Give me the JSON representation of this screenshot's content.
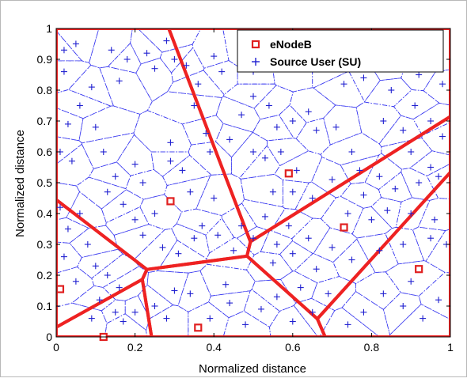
{
  "chart_data": {
    "type": "scatter",
    "title": "",
    "xlabel": "Normalized distance",
    "ylabel": "Normalized distance",
    "xlim": [
      0,
      1
    ],
    "ylim": [
      0,
      1
    ],
    "x_ticks": [
      "0",
      "0.2",
      "0.4",
      "0.6",
      "0.8",
      "1"
    ],
    "y_ticks": [
      "0",
      "0.1",
      "0.2",
      "0.3",
      "0.4",
      "0.5",
      "0.6",
      "0.7",
      "0.8",
      "0.9",
      "1"
    ],
    "grid": false,
    "legend_position": "top-right",
    "colors": {
      "enodeb": "#e02020",
      "su": "#1f1fd0",
      "cell_edge": "#ee2222",
      "user_edge": "#3a3af0"
    },
    "series": [
      {
        "name": "eNodeB",
        "marker": "square",
        "points": [
          [
            0.01,
            0.155
          ],
          [
            0.12,
            0.0
          ],
          [
            0.29,
            0.44
          ],
          [
            0.36,
            0.03
          ],
          [
            0.59,
            0.53
          ],
          [
            0.73,
            0.355
          ],
          [
            0.92,
            0.22
          ]
        ]
      },
      {
        "name": "Source User (SU)",
        "marker": "plus",
        "points": [
          [
            0.02,
            0.93
          ],
          [
            0.05,
            0.95
          ],
          [
            0.02,
            0.86
          ],
          [
            0.06,
            0.75
          ],
          [
            0.09,
            0.81
          ],
          [
            0.03,
            0.69
          ],
          [
            0.01,
            0.6
          ],
          [
            0.04,
            0.57
          ],
          [
            0.01,
            0.42
          ],
          [
            0.06,
            0.4
          ],
          [
            0.03,
            0.35
          ],
          [
            0.08,
            0.3
          ],
          [
            0.02,
            0.26
          ],
          [
            0.1,
            0.23
          ],
          [
            0.05,
            0.18
          ],
          [
            0.13,
            0.2
          ],
          [
            0.16,
            0.16
          ],
          [
            0.11,
            0.12
          ],
          [
            0.15,
            0.08
          ],
          [
            0.09,
            0.06
          ],
          [
            0.2,
            0.08
          ],
          [
            0.17,
            0.05
          ],
          [
            0.25,
            0.1
          ],
          [
            0.3,
            0.15
          ],
          [
            0.28,
            0.06
          ],
          [
            0.34,
            0.14
          ],
          [
            0.39,
            0.06
          ],
          [
            0.43,
            0.17
          ],
          [
            0.44,
            0.11
          ],
          [
            0.48,
            0.04
          ],
          [
            0.14,
            0.93
          ],
          [
            0.18,
            0.9
          ],
          [
            0.16,
            0.83
          ],
          [
            0.23,
            0.92
          ],
          [
            0.25,
            0.87
          ],
          [
            0.28,
            0.96
          ],
          [
            0.3,
            0.9
          ],
          [
            0.33,
            0.88
          ],
          [
            0.36,
            0.82
          ],
          [
            0.4,
            0.91
          ],
          [
            0.42,
            0.86
          ],
          [
            0.47,
            0.92
          ],
          [
            0.5,
            0.86
          ],
          [
            0.55,
            0.92
          ],
          [
            0.6,
            0.87
          ],
          [
            0.64,
            0.91
          ],
          [
            0.66,
            0.96
          ],
          [
            0.7,
            0.87
          ],
          [
            0.73,
            0.82
          ],
          [
            0.78,
            0.84
          ],
          [
            0.84,
            0.87
          ],
          [
            0.87,
            0.92
          ],
          [
            0.92,
            0.85
          ],
          [
            0.96,
            0.9
          ],
          [
            0.98,
            0.82
          ],
          [
            0.85,
            0.8
          ],
          [
            0.91,
            0.75
          ],
          [
            0.83,
            0.7
          ],
          [
            0.88,
            0.67
          ],
          [
            0.95,
            0.7
          ],
          [
            0.98,
            0.65
          ],
          [
            0.9,
            0.6
          ],
          [
            0.95,
            0.55
          ],
          [
            0.97,
            0.52
          ],
          [
            0.92,
            0.5
          ],
          [
            0.86,
            0.48
          ],
          [
            0.82,
            0.52
          ],
          [
            0.78,
            0.46
          ],
          [
            0.74,
            0.4
          ],
          [
            0.8,
            0.38
          ],
          [
            0.84,
            0.41
          ],
          [
            0.9,
            0.4
          ],
          [
            0.96,
            0.38
          ],
          [
            0.99,
            0.3
          ],
          [
            0.95,
            0.32
          ],
          [
            0.88,
            0.3
          ],
          [
            0.82,
            0.28
          ],
          [
            0.75,
            0.25
          ],
          [
            0.7,
            0.29
          ],
          [
            0.66,
            0.22
          ],
          [
            0.6,
            0.27
          ],
          [
            0.55,
            0.24
          ],
          [
            0.83,
            0.14
          ],
          [
            0.88,
            0.1
          ],
          [
            0.93,
            0.06
          ],
          [
            0.97,
            0.12
          ],
          [
            0.9,
            0.18
          ],
          [
            0.78,
            0.08
          ],
          [
            0.74,
            0.04
          ],
          [
            0.65,
            0.08
          ],
          [
            0.6,
            0.05
          ],
          [
            0.56,
            0.13
          ],
          [
            0.52,
            0.09
          ],
          [
            0.35,
            0.75
          ],
          [
            0.38,
            0.66
          ],
          [
            0.39,
            0.6
          ],
          [
            0.4,
            0.45
          ],
          [
            0.37,
            0.36
          ],
          [
            0.35,
            0.32
          ],
          [
            0.41,
            0.33
          ],
          [
            0.47,
            0.36
          ],
          [
            0.45,
            0.28
          ],
          [
            0.31,
            0.27
          ],
          [
            0.27,
            0.29
          ],
          [
            0.22,
            0.33
          ],
          [
            0.2,
            0.38
          ],
          [
            0.25,
            0.4
          ],
          [
            0.22,
            0.5
          ],
          [
            0.2,
            0.56
          ],
          [
            0.15,
            0.52
          ],
          [
            0.12,
            0.6
          ],
          [
            0.1,
            0.68
          ],
          [
            0.13,
            0.47
          ],
          [
            0.17,
            0.43
          ],
          [
            0.29,
            0.57
          ],
          [
            0.29,
            0.63
          ],
          [
            0.32,
            0.54
          ],
          [
            0.34,
            0.47
          ],
          [
            0.5,
            0.6
          ],
          [
            0.53,
            0.58
          ],
          [
            0.57,
            0.6
          ],
          [
            0.61,
            0.54
          ],
          [
            0.55,
            0.47
          ],
          [
            0.6,
            0.47
          ],
          [
            0.65,
            0.45
          ],
          [
            0.7,
            0.51
          ],
          [
            0.66,
            0.67
          ],
          [
            0.64,
            0.73
          ],
          [
            0.6,
            0.7
          ],
          [
            0.71,
            0.68
          ],
          [
            0.75,
            0.6
          ],
          [
            0.77,
            0.54
          ],
          [
            0.5,
            0.78
          ],
          [
            0.54,
            0.75
          ],
          [
            0.56,
            0.68
          ],
          [
            0.47,
            0.72
          ],
          [
            0.44,
            0.64
          ],
          [
            0.53,
            0.39
          ],
          [
            0.59,
            0.36
          ],
          [
            0.64,
            0.32
          ],
          [
            0.56,
            0.3
          ],
          [
            0.5,
            0.32
          ],
          [
            0.69,
            0.14
          ],
          [
            0.62,
            0.16
          ]
        ]
      }
    ]
  }
}
